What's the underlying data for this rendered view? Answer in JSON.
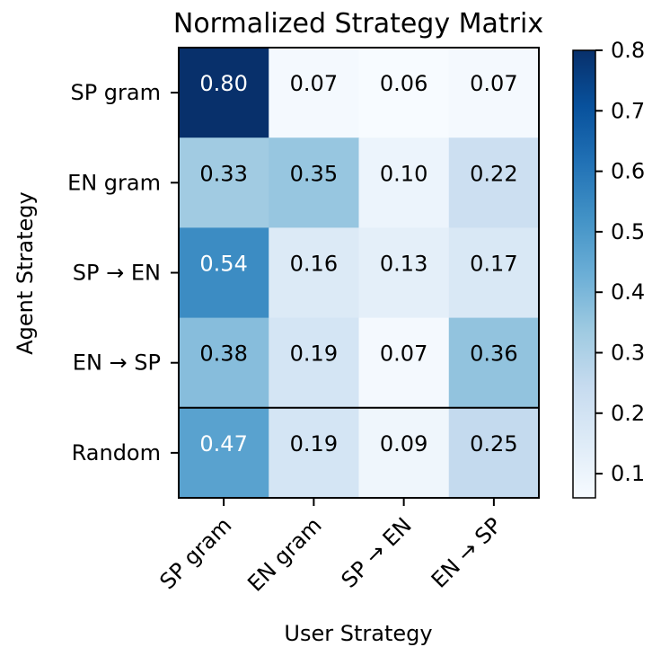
{
  "chart_data": {
    "type": "heatmap",
    "title": "Normalized Strategy Matrix",
    "xlabel": "User Strategy",
    "ylabel": "Agent Strategy",
    "x_categories": [
      "SP gram",
      "EN gram",
      "SP → EN",
      "EN → SP"
    ],
    "y_categories": [
      "SP gram",
      "EN gram",
      "SP → EN",
      "EN → SP",
      "Random"
    ],
    "values": [
      [
        0.8,
        0.07,
        0.06,
        0.07
      ],
      [
        0.33,
        0.35,
        0.1,
        0.22
      ],
      [
        0.54,
        0.16,
        0.13,
        0.17
      ],
      [
        0.38,
        0.19,
        0.07,
        0.36
      ],
      [
        0.47,
        0.19,
        0.09,
        0.25
      ]
    ],
    "cell_labels": [
      [
        "0.80",
        "0.07",
        "0.06",
        "0.07"
      ],
      [
        "0.33",
        "0.35",
        "0.10",
        "0.22"
      ],
      [
        "0.54",
        "0.16",
        "0.13",
        "0.17"
      ],
      [
        "0.38",
        "0.19",
        "0.07",
        "0.36"
      ],
      [
        "0.47",
        "0.19",
        "0.09",
        "0.25"
      ]
    ],
    "colormap": "Blues",
    "color_range": [
      0.06,
      0.8
    ],
    "colorbar_ticks": [
      "0.1",
      "0.2",
      "0.3",
      "0.4",
      "0.5",
      "0.6",
      "0.7",
      "0.8"
    ],
    "separator_after_row": 4
  }
}
